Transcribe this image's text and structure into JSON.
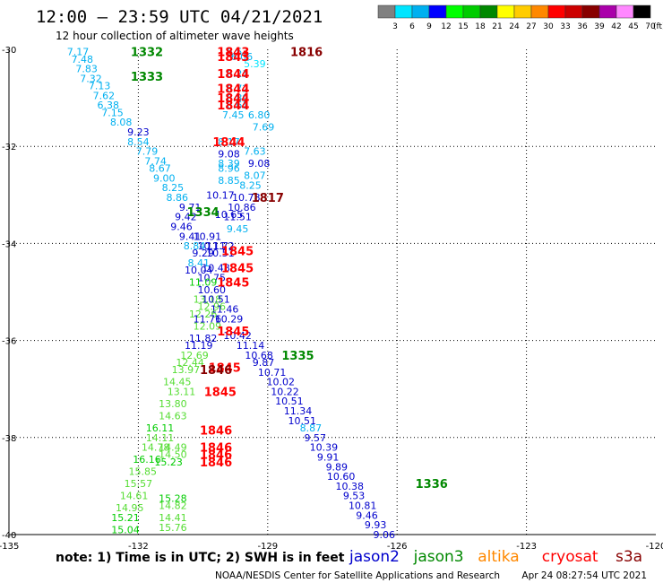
{
  "header": {
    "title": "12:00 – 23:59 UTC 04/21/2021",
    "subtitle": "12 hour collection of altimeter wave heights"
  },
  "scale": {
    "unit": "(ft)",
    "colors": [
      "#808080",
      "#00e5ff",
      "#00b0f0",
      "#0000ff",
      "#00ff00",
      "#00cc00",
      "#008800",
      "#ffff00",
      "#ffcc00",
      "#ff8800",
      "#ff0000",
      "#cc0000",
      "#880000",
      "#aa00aa",
      "#ff88ff",
      "#000000"
    ],
    "labels": [
      "3",
      "6",
      "9",
      "12",
      "15",
      "18",
      "21",
      "24",
      "27",
      "30",
      "33",
      "36",
      "39",
      "42",
      "45",
      "70"
    ]
  },
  "footer": {
    "note": "note: 1) Time is in UTC; 2) SWH is in feet",
    "satellites": [
      {
        "name": "jason2",
        "color": "#0000cc"
      },
      {
        "name": "jason3",
        "color": "#008800"
      },
      {
        "name": "altika",
        "color": "#ff8800"
      },
      {
        "name": "cryosat",
        "color": "#ff0000"
      },
      {
        "name": "s3a",
        "color": "#880000"
      }
    ],
    "credit": "NOAA/NESDIS Center for Satellite Applications and Research",
    "timestamp": "Apr 24 08:27:54 UTC 2021"
  },
  "chart_data": {
    "type": "scatter",
    "x_ticks": [
      "-135",
      "-132",
      "-129",
      "-126",
      "-123",
      "-120"
    ],
    "y_ticks": [
      "-30",
      "-32",
      "-34",
      "-36",
      "-38",
      "-40"
    ],
    "xlim": [
      -135,
      -120
    ],
    "ylim": [
      -40,
      -30
    ],
    "grid": true,
    "pass_times": [
      {
        "lon": -131.8,
        "lat": -30.05,
        "label": "1332",
        "color": "#008800"
      },
      {
        "lon": -131.8,
        "lat": -30.55,
        "label": "1333",
        "color": "#008800"
      },
      {
        "lon": -129.8,
        "lat": -30.05,
        "label": "1843",
        "color": "#ff0000"
      },
      {
        "lon": -129.8,
        "lat": -30.15,
        "label": "1843",
        "color": "#ff0000"
      },
      {
        "lon": -128.1,
        "lat": -30.05,
        "label": "1816",
        "color": "#880000"
      },
      {
        "lon": -129.8,
        "lat": -30.5,
        "label": "1844",
        "color": "#ff0000"
      },
      {
        "lon": -129.8,
        "lat": -30.8,
        "label": "1844",
        "color": "#ff0000"
      },
      {
        "lon": -129.8,
        "lat": -31.0,
        "label": "1844",
        "color": "#ff0000"
      },
      {
        "lon": -129.8,
        "lat": -31.15,
        "label": "1844",
        "color": "#ff0000"
      },
      {
        "lon": -129.9,
        "lat": -31.9,
        "label": "1844",
        "color": "#ff0000"
      },
      {
        "lon": -129.0,
        "lat": -33.05,
        "label": "1817",
        "color": "#880000"
      },
      {
        "lon": -130.5,
        "lat": -33.35,
        "label": "1334",
        "color": "#008800"
      },
      {
        "lon": -129.7,
        "lat": -34.15,
        "label": "1845",
        "color": "#ff0000"
      },
      {
        "lon": -129.7,
        "lat": -34.5,
        "label": "1845",
        "color": "#ff0000"
      },
      {
        "lon": -129.8,
        "lat": -34.8,
        "label": "1845",
        "color": "#ff0000"
      },
      {
        "lon": -129.8,
        "lat": -35.8,
        "label": "1845",
        "color": "#ff0000"
      },
      {
        "lon": -128.3,
        "lat": -36.3,
        "label": "1335",
        "color": "#008800"
      },
      {
        "lon": -130.0,
        "lat": -36.55,
        "label": "1845",
        "color": "#ff0000"
      },
      {
        "lon": -130.2,
        "lat": -36.6,
        "label": "1846",
        "color": "#880000"
      },
      {
        "lon": -130.1,
        "lat": -37.05,
        "label": "1845",
        "color": "#ff0000"
      },
      {
        "lon": -130.2,
        "lat": -37.85,
        "label": "1846",
        "color": "#ff0000"
      },
      {
        "lon": -130.2,
        "lat": -38.2,
        "label": "1846",
        "color": "#ff0000"
      },
      {
        "lon": -130.2,
        "lat": -38.35,
        "label": "1846",
        "color": "#ff0000"
      },
      {
        "lon": -130.2,
        "lat": -38.5,
        "label": "1846",
        "color": "#ff0000"
      },
      {
        "lon": -125.2,
        "lat": -38.95,
        "label": "1336",
        "color": "#008800"
      }
    ],
    "observations": [
      {
        "lon": -133.4,
        "lat": -30.05,
        "v": "7.17",
        "c": "#00b0f0"
      },
      {
        "lon": -133.3,
        "lat": -30.2,
        "v": "7.48",
        "c": "#00b0f0"
      },
      {
        "lon": -133.2,
        "lat": -30.4,
        "v": "7.83",
        "c": "#00b0f0"
      },
      {
        "lon": -133.1,
        "lat": -30.6,
        "v": "7.32",
        "c": "#00b0f0"
      },
      {
        "lon": -132.9,
        "lat": -30.75,
        "v": "7.13",
        "c": "#00b0f0"
      },
      {
        "lon": -132.8,
        "lat": -30.95,
        "v": "7.62",
        "c": "#00b0f0"
      },
      {
        "lon": -132.7,
        "lat": -31.15,
        "v": "6.38",
        "c": "#00b0f0"
      },
      {
        "lon": -132.6,
        "lat": -31.3,
        "v": "7.15",
        "c": "#00b0f0"
      },
      {
        "lon": -132.4,
        "lat": -31.5,
        "v": "8.08",
        "c": "#00b0f0"
      },
      {
        "lon": -132.0,
        "lat": -31.7,
        "v": "9.23",
        "c": "#0000cc"
      },
      {
        "lon": -132.0,
        "lat": -31.9,
        "v": "8.54",
        "c": "#00b0f0"
      },
      {
        "lon": -131.8,
        "lat": -32.1,
        "v": "7.79",
        "c": "#00b0f0"
      },
      {
        "lon": -131.6,
        "lat": -32.3,
        "v": "7.74",
        "c": "#00b0f0"
      },
      {
        "lon": -131.5,
        "lat": -32.45,
        "v": "8.67",
        "c": "#00b0f0"
      },
      {
        "lon": -131.4,
        "lat": -32.65,
        "v": "9.00",
        "c": "#00b0f0"
      },
      {
        "lon": -131.2,
        "lat": -32.85,
        "v": "8.25",
        "c": "#00b0f0"
      },
      {
        "lon": -131.1,
        "lat": -33.05,
        "v": "8.86",
        "c": "#00b0f0"
      },
      {
        "lon": -130.8,
        "lat": -33.25,
        "v": "9.71",
        "c": "#0000cc"
      },
      {
        "lon": -130.9,
        "lat": -33.45,
        "v": "9.42",
        "c": "#0000cc"
      },
      {
        "lon": -131.0,
        "lat": -33.65,
        "v": "9.46",
        "c": "#0000cc"
      },
      {
        "lon": -130.8,
        "lat": -33.85,
        "v": "9.41",
        "c": "#0000cc"
      },
      {
        "lon": -130.4,
        "lat": -33.85,
        "v": "10.91",
        "c": "#0000cc"
      },
      {
        "lon": -130.7,
        "lat": -34.05,
        "v": "8.84",
        "c": "#00b0f0"
      },
      {
        "lon": -130.5,
        "lat": -34.2,
        "v": "9.29",
        "c": "#0000cc"
      },
      {
        "lon": -130.3,
        "lat": -34.05,
        "v": "10.11",
        "c": "#0000cc"
      },
      {
        "lon": -130.1,
        "lat": -34.05,
        "v": "11.72",
        "c": "#0000cc"
      },
      {
        "lon": -130.1,
        "lat": -34.2,
        "v": "10.51",
        "c": "#0000cc"
      },
      {
        "lon": -130.6,
        "lat": -34.4,
        "v": "8.41",
        "c": "#00b0f0"
      },
      {
        "lon": -130.6,
        "lat": -34.55,
        "v": "10.04",
        "c": "#0000cc"
      },
      {
        "lon": -130.2,
        "lat": -34.5,
        "v": "10.48",
        "c": "#0000cc"
      },
      {
        "lon": -130.3,
        "lat": -34.7,
        "v": "10.75",
        "c": "#0000cc"
      },
      {
        "lon": -130.5,
        "lat": -34.8,
        "v": "11.09",
        "c": "#00cc00"
      },
      {
        "lon": -130.3,
        "lat": -34.95,
        "v": "10.60",
        "c": "#0000cc"
      },
      {
        "lon": -130.4,
        "lat": -35.15,
        "v": "13.18",
        "c": "#55dd33"
      },
      {
        "lon": -130.2,
        "lat": -35.15,
        "v": "10.51",
        "c": "#0000cc"
      },
      {
        "lon": -130.3,
        "lat": -35.3,
        "v": "12.96",
        "c": "#55dd33"
      },
      {
        "lon": -130.0,
        "lat": -35.35,
        "v": "11.46",
        "c": "#0000cc"
      },
      {
        "lon": -130.5,
        "lat": -35.45,
        "v": "12.26",
        "c": "#55dd33"
      },
      {
        "lon": -130.4,
        "lat": -35.55,
        "v": "11.76",
        "c": "#0000cc"
      },
      {
        "lon": -129.9,
        "lat": -35.55,
        "v": "10.29",
        "c": "#0000cc"
      },
      {
        "lon": -130.4,
        "lat": -35.7,
        "v": "12.09",
        "c": "#55dd33"
      },
      {
        "lon": -129.7,
        "lat": -35.9,
        "v": "10.42",
        "c": "#0000cc"
      },
      {
        "lon": -130.5,
        "lat": -35.95,
        "v": "11.82",
        "c": "#0000cc"
      },
      {
        "lon": -130.6,
        "lat": -36.1,
        "v": "11.19",
        "c": "#0000cc"
      },
      {
        "lon": -129.4,
        "lat": -36.1,
        "v": "11.14",
        "c": "#0000cc"
      },
      {
        "lon": -130.7,
        "lat": -36.3,
        "v": "12.69",
        "c": "#55dd33"
      },
      {
        "lon": -129.2,
        "lat": -36.3,
        "v": "10.68",
        "c": "#0000cc"
      },
      {
        "lon": -130.8,
        "lat": -36.45,
        "v": "12.44",
        "c": "#55dd33"
      },
      {
        "lon": -129.1,
        "lat": -36.45,
        "v": "9.87",
        "c": "#0000cc"
      },
      {
        "lon": -130.9,
        "lat": -36.6,
        "v": "13.97",
        "c": "#55dd33"
      },
      {
        "lon": -128.9,
        "lat": -36.65,
        "v": "10.71",
        "c": "#0000cc"
      },
      {
        "lon": -131.1,
        "lat": -36.85,
        "v": "14.45",
        "c": "#55dd33"
      },
      {
        "lon": -128.7,
        "lat": -36.85,
        "v": "10.02",
        "c": "#0000cc"
      },
      {
        "lon": -131.0,
        "lat": -37.05,
        "v": "13.11",
        "c": "#55dd33"
      },
      {
        "lon": -128.6,
        "lat": -37.05,
        "v": "10.22",
        "c": "#0000cc"
      },
      {
        "lon": -128.5,
        "lat": -37.25,
        "v": "10.51",
        "c": "#0000cc"
      },
      {
        "lon": -131.2,
        "lat": -37.3,
        "v": "13.80",
        "c": "#55dd33"
      },
      {
        "lon": -128.3,
        "lat": -37.45,
        "v": "11.34",
        "c": "#0000cc"
      },
      {
        "lon": -131.2,
        "lat": -37.55,
        "v": "14.63",
        "c": "#55dd33"
      },
      {
        "lon": -128.2,
        "lat": -37.65,
        "v": "10.51",
        "c": "#0000cc"
      },
      {
        "lon": -131.5,
        "lat": -37.8,
        "v": "16.11",
        "c": "#00cc00"
      },
      {
        "lon": -128.0,
        "lat": -37.8,
        "v": "8.87",
        "c": "#00b0f0"
      },
      {
        "lon": -131.5,
        "lat": -38.0,
        "v": "14.11",
        "c": "#55dd33"
      },
      {
        "lon": -127.9,
        "lat": -38.0,
        "v": "9.57",
        "c": "#0000cc"
      },
      {
        "lon": -131.6,
        "lat": -38.2,
        "v": "14.78",
        "c": "#55dd33"
      },
      {
        "lon": -127.7,
        "lat": -38.2,
        "v": "10.39",
        "c": "#0000cc"
      },
      {
        "lon": -131.2,
        "lat": -38.2,
        "v": "14.49",
        "c": "#55dd33"
      },
      {
        "lon": -131.2,
        "lat": -38.35,
        "v": "14.50",
        "c": "#55dd33"
      },
      {
        "lon": -127.6,
        "lat": -38.4,
        "v": "9.91",
        "c": "#0000cc"
      },
      {
        "lon": -131.8,
        "lat": -38.45,
        "v": "16.16",
        "c": "#00cc00"
      },
      {
        "lon": -131.3,
        "lat": -38.5,
        "v": "15.23",
        "c": "#00cc00"
      },
      {
        "lon": -127.4,
        "lat": -38.6,
        "v": "9.89",
        "c": "#0000cc"
      },
      {
        "lon": -131.9,
        "lat": -38.7,
        "v": "15.85",
        "c": "#55dd33"
      },
      {
        "lon": -127.3,
        "lat": -38.8,
        "v": "10.60",
        "c": "#0000cc"
      },
      {
        "lon": -132.0,
        "lat": -38.95,
        "v": "15.57",
        "c": "#55dd33"
      },
      {
        "lon": -127.1,
        "lat": -39.0,
        "v": "10.38",
        "c": "#0000cc"
      },
      {
        "lon": -132.1,
        "lat": -39.2,
        "v": "14.61",
        "c": "#55dd33"
      },
      {
        "lon": -127.0,
        "lat": -39.2,
        "v": "9.53",
        "c": "#0000cc"
      },
      {
        "lon": -131.2,
        "lat": -39.25,
        "v": "15.28",
        "c": "#00cc00"
      },
      {
        "lon": -132.2,
        "lat": -39.45,
        "v": "14.95",
        "c": "#55dd33"
      },
      {
        "lon": -131.2,
        "lat": -39.4,
        "v": "14.82",
        "c": "#55dd33"
      },
      {
        "lon": -126.8,
        "lat": -39.4,
        "v": "10.81",
        "c": "#0000cc"
      },
      {
        "lon": -126.7,
        "lat": -39.6,
        "v": "9.46",
        "c": "#0000cc"
      },
      {
        "lon": -132.3,
        "lat": -39.65,
        "v": "15.21",
        "c": "#00cc00"
      },
      {
        "lon": -131.2,
        "lat": -39.65,
        "v": "14.41",
        "c": "#55dd33"
      },
      {
        "lon": -126.5,
        "lat": -39.8,
        "v": "9.93",
        "c": "#0000cc"
      },
      {
        "lon": -132.3,
        "lat": -39.9,
        "v": "15.04",
        "c": "#00cc00"
      },
      {
        "lon": -131.2,
        "lat": -39.85,
        "v": "15.76",
        "c": "#55dd33"
      },
      {
        "lon": -126.3,
        "lat": -40.0,
        "v": "9.06",
        "c": "#0000cc"
      },
      {
        "lon": -129.7,
        "lat": -30.05,
        "v": "6.57",
        "c": "#00b0f0"
      },
      {
        "lon": -129.6,
        "lat": -30.15,
        "v": "6.06",
        "c": "#00b0f0"
      },
      {
        "lon": -129.3,
        "lat": -30.3,
        "v": "5.39",
        "c": "#00e5ff"
      },
      {
        "lon": -129.7,
        "lat": -30.5,
        "v": "6.21",
        "c": "#00b0f0"
      },
      {
        "lon": -129.7,
        "lat": -30.8,
        "v": "6.72",
        "c": "#00b0f0"
      },
      {
        "lon": -129.7,
        "lat": -31.0,
        "v": "6.89",
        "c": "#00b0f0"
      },
      {
        "lon": -129.7,
        "lat": -31.15,
        "v": "6.61",
        "c": "#00b0f0"
      },
      {
        "lon": -129.8,
        "lat": -31.35,
        "v": "7.45",
        "c": "#00b0f0"
      },
      {
        "lon": -129.2,
        "lat": -31.35,
        "v": "6.80",
        "c": "#00b0f0"
      },
      {
        "lon": -129.1,
        "lat": -31.6,
        "v": "7.69",
        "c": "#00b0f0"
      },
      {
        "lon": -129.9,
        "lat": -31.9,
        "v": "8.17",
        "c": "#00b0f0"
      },
      {
        "lon": -129.3,
        "lat": -32.1,
        "v": "7.63",
        "c": "#00b0f0"
      },
      {
        "lon": -129.9,
        "lat": -32.15,
        "v": "9.08",
        "c": "#0000cc"
      },
      {
        "lon": -129.9,
        "lat": -32.35,
        "v": "8.39",
        "c": "#00b0f0"
      },
      {
        "lon": -129.9,
        "lat": -32.45,
        "v": "8.96",
        "c": "#00b0f0"
      },
      {
        "lon": -129.2,
        "lat": -32.35,
        "v": "9.08",
        "c": "#0000cc"
      },
      {
        "lon": -129.3,
        "lat": -32.6,
        "v": "8.07",
        "c": "#00b0f0"
      },
      {
        "lon": -129.9,
        "lat": -32.7,
        "v": "8.85",
        "c": "#00b0f0"
      },
      {
        "lon": -129.4,
        "lat": -32.8,
        "v": "8.25",
        "c": "#00b0f0"
      },
      {
        "lon": -130.1,
        "lat": -33.0,
        "v": "10.17",
        "c": "#0000cc"
      },
      {
        "lon": -129.5,
        "lat": -33.05,
        "v": "10.78",
        "c": "#0000cc"
      },
      {
        "lon": -129.6,
        "lat": -33.25,
        "v": "10.86",
        "c": "#0000cc"
      },
      {
        "lon": -129.7,
        "lat": -33.45,
        "v": "11.51",
        "c": "#0000cc"
      },
      {
        "lon": -129.9,
        "lat": -33.4,
        "v": "10.65",
        "c": "#0000cc"
      },
      {
        "lon": -129.7,
        "lat": -33.7,
        "v": "9.45",
        "c": "#00b0f0"
      }
    ]
  }
}
